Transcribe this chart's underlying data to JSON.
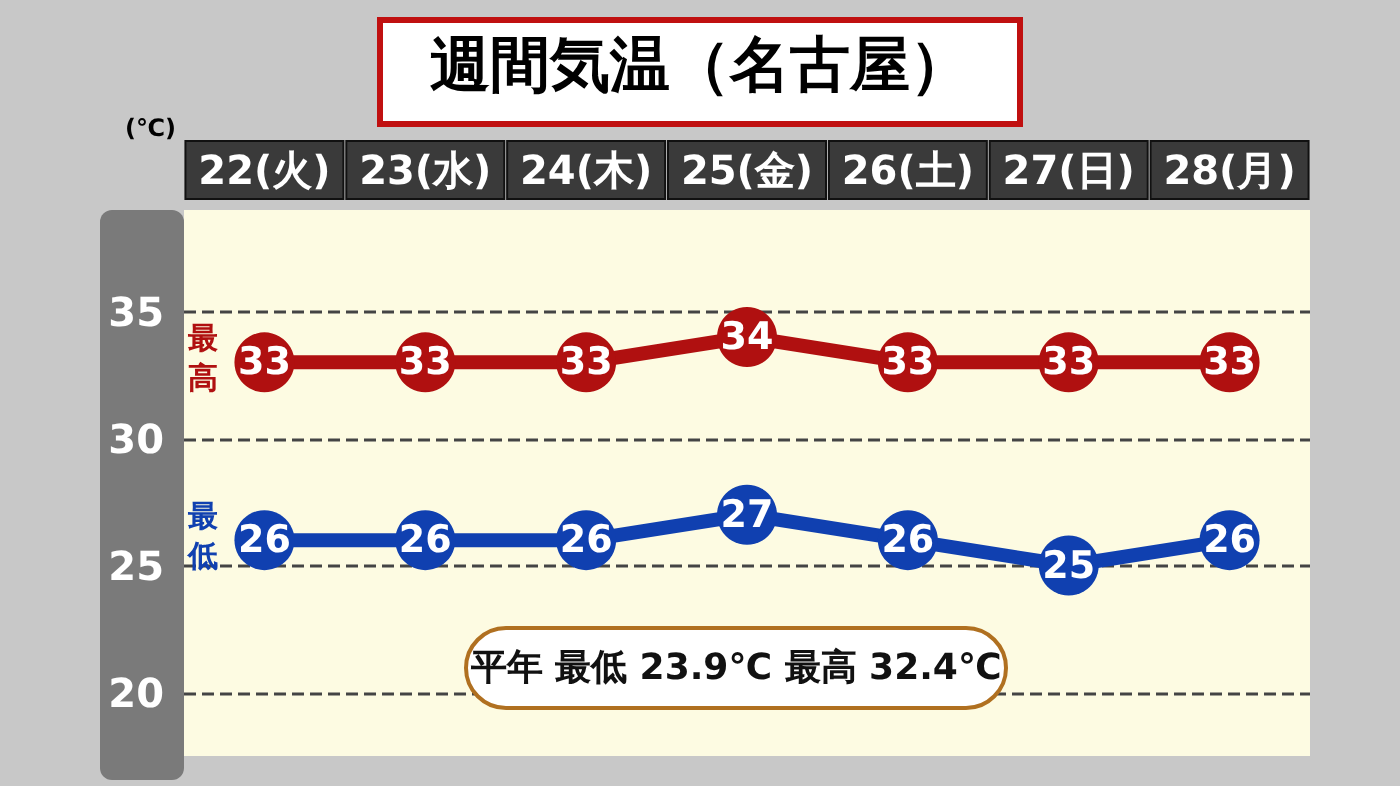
{
  "chart_data": {
    "type": "line",
    "title": "週間気温（名古屋）",
    "ylabel": "(℃)",
    "categories": [
      "22(火)",
      "23(水)",
      "24(木)",
      "25(金)",
      "26(土)",
      "27(日)",
      "28(月)"
    ],
    "series": [
      {
        "name": "最高",
        "color": "#b01010",
        "values": [
          33,
          33,
          33,
          34,
          33,
          33,
          33
        ]
      },
      {
        "name": "最低",
        "color": "#1040b0",
        "values": [
          26,
          26,
          26,
          27,
          26,
          25,
          26
        ]
      }
    ],
    "ylim": [
      17.5,
      39
    ],
    "yticks": [
      20,
      25,
      30,
      35
    ],
    "grid": "y",
    "marker": "circle",
    "line_style": "solid",
    "data_labels": true,
    "legend": false,
    "annotations": [
      "平年 最低 23.9℃ 最高 32.4℃"
    ]
  }
}
